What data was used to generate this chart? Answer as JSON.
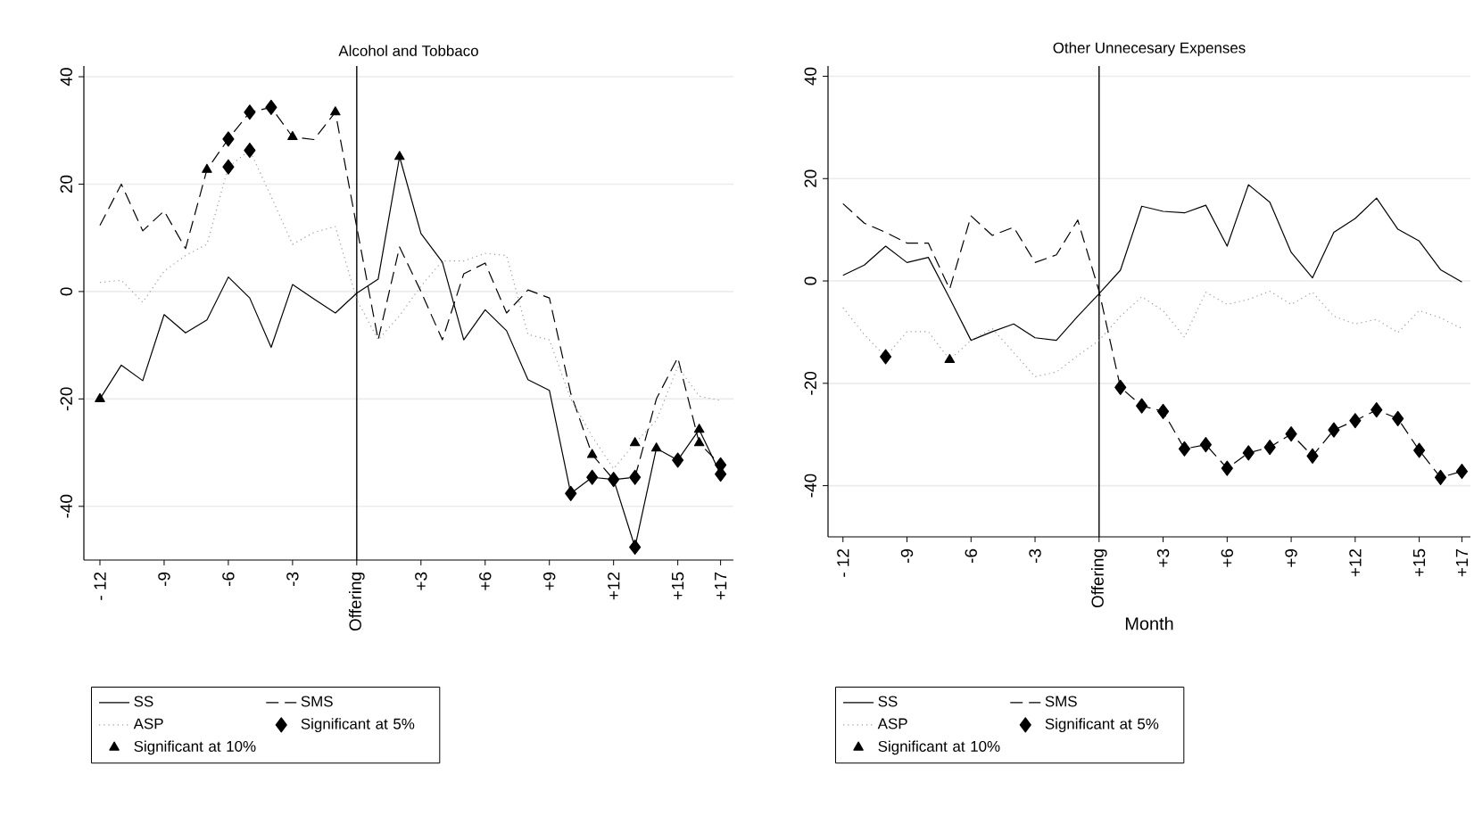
{
  "chart_data": [
    {
      "type": "line",
      "title": "Alcohol and Tobbaco",
      "x": [
        -12,
        -11,
        -10,
        -9,
        -8,
        -7,
        -6,
        -5,
        -4,
        -3,
        -2,
        -1,
        0,
        1,
        2,
        3,
        4,
        5,
        6,
        7,
        8,
        9,
        10,
        11,
        12,
        13,
        14,
        15,
        16,
        17
      ],
      "xlim": [
        -12.75,
        17.6
      ],
      "ylim": [
        -50,
        42
      ],
      "xticks": [
        {
          "value": -12,
          "label": "- 12"
        },
        {
          "value": -9,
          "label": "-9"
        },
        {
          "value": -6,
          "label": "-6"
        },
        {
          "value": -3,
          "label": "-3"
        },
        {
          "value": 0,
          "label": "Offering"
        },
        {
          "value": 3,
          "label": "+3"
        },
        {
          "value": 6,
          "label": "+6"
        },
        {
          "value": 9,
          "label": "+9"
        },
        {
          "value": 12,
          "label": "+12"
        },
        {
          "value": 15,
          "label": "+15"
        },
        {
          "value": 17,
          "label": "+17"
        }
      ],
      "yticks": [
        -40,
        -20,
        0,
        20,
        40
      ],
      "grid": "y",
      "legend": "bottom",
      "ref_lines": [
        {
          "axis": "x",
          "value": 0,
          "color": "#000000"
        }
      ],
      "series": [
        {
          "name": "SS",
          "color": "#000000",
          "line_style": "solid",
          "marker": "none",
          "values": [
            -20,
            -13.7,
            -16.6,
            -4.3,
            -7.7,
            -5.3,
            2.7,
            -1.2,
            -10.4,
            1.3,
            -1.4,
            -4,
            -0.3,
            2.3,
            25.1,
            10.8,
            5.5,
            -9,
            -3.4,
            -7.3,
            -16.4,
            -18.4,
            -37.6,
            -34.6,
            -35,
            -47.6,
            -29.2,
            -31.4,
            -25.7,
            -34
          ]
        },
        {
          "name": "SMS",
          "color": "#000000",
          "line_style": "dashed",
          "marker": "none",
          "values": [
            12.3,
            20,
            11.3,
            15,
            8,
            22.7,
            28.4,
            33.4,
            34.3,
            28.8,
            28.3,
            33.4,
            12,
            -9,
            8.3,
            0,
            -9,
            3.3,
            5.3,
            -4,
            0.3,
            -1.2,
            -19,
            -30.4,
            -35,
            -34.6,
            -20,
            -12.3,
            -28.2,
            -32.3
          ]
        },
        {
          "name": "ASP",
          "color": "#9a9a9a",
          "line_style": "dotted",
          "marker": "none",
          "values": [
            1.7,
            2.1,
            -2,
            3.8,
            6.7,
            8.8,
            23.2,
            26.3,
            17.7,
            8.8,
            11,
            12.1,
            -1.5,
            -9,
            -4.5,
            1,
            5.7,
            5.7,
            7.1,
            6.7,
            -8,
            -9,
            -20,
            -27,
            -33,
            -28.2,
            -24,
            -14,
            -19.5,
            -20.3
          ]
        },
        {
          "name": "Significant at 5%",
          "type": "scatter",
          "color": "#000000",
          "marker": "diamond",
          "x": [
            -6,
            -5,
            -4,
            -6,
            -5,
            10,
            11,
            12,
            13,
            13,
            15,
            17,
            17
          ],
          "values": [
            28.4,
            33.4,
            34.3,
            23.2,
            26.3,
            -37.6,
            -34.6,
            -35,
            -34.6,
            -47.6,
            -31.4,
            -32.3,
            -34
          ]
        },
        {
          "name": "Significant at 10%",
          "type": "scatter",
          "color": "#000000",
          "marker": "triangle",
          "x": [
            -12,
            -7,
            -3,
            -1,
            2,
            11,
            13,
            14,
            16,
            16
          ],
          "values": [
            -20,
            22.7,
            28.8,
            33.4,
            25.1,
            -30.4,
            -28.2,
            -29.2,
            -25.7,
            -28.2
          ]
        }
      ]
    },
    {
      "type": "line",
      "title": "Other Unnecesary Expenses",
      "xlabel": "Month",
      "x": [
        -12,
        -11,
        -10,
        -9,
        -8,
        -7,
        -6,
        -5,
        -4,
        -3,
        -2,
        -1,
        0,
        1,
        2,
        3,
        4,
        5,
        6,
        7,
        8,
        9,
        10,
        11,
        12,
        13,
        14,
        15,
        16,
        17
      ],
      "xlim": [
        -12.7,
        17.4
      ],
      "ylim": [
        -50,
        42
      ],
      "xticks": [
        {
          "value": -12,
          "label": "- 12"
        },
        {
          "value": -9,
          "label": "-9"
        },
        {
          "value": -6,
          "label": "-6"
        },
        {
          "value": -3,
          "label": "-3"
        },
        {
          "value": 0,
          "label": "Offering"
        },
        {
          "value": 3,
          "label": "+3"
        },
        {
          "value": 6,
          "label": "+6"
        },
        {
          "value": 9,
          "label": "+9"
        },
        {
          "value": 12,
          "label": "+12"
        },
        {
          "value": 15,
          "label": "+15"
        },
        {
          "value": 17,
          "label": "+17"
        }
      ],
      "yticks": [
        -40,
        -20,
        0,
        20,
        40
      ],
      "grid": "y",
      "legend": "bottom",
      "ref_lines": [
        {
          "axis": "x",
          "value": 0,
          "color": "#000000"
        }
      ],
      "series": [
        {
          "name": "SS",
          "color": "#000000",
          "line_style": "solid",
          "marker": "none",
          "values": [
            1.1,
            3.1,
            6.8,
            3.6,
            4.6,
            -3.4,
            -11.6,
            -9.9,
            -8.4,
            -11.1,
            -11.6,
            -6.9,
            -2.5,
            2.1,
            14.6,
            13.6,
            13.3,
            14.8,
            6.8,
            18.8,
            15.4,
            5.6,
            0.6,
            9.5,
            12.2,
            16.2,
            10.1,
            7.8,
            2.2,
            -0.2
          ]
        },
        {
          "name": "SMS",
          "color": "#000000",
          "line_style": "dashed",
          "marker": "none",
          "values": [
            15.1,
            11.3,
            9.5,
            7.4,
            7.4,
            -1.6,
            12.7,
            8.9,
            10.5,
            3.6,
            5.1,
            11.9,
            -2,
            -20.8,
            -24.4,
            -25.5,
            -32.8,
            -32,
            -36.6,
            -33.6,
            -32.5,
            -29.9,
            -34.2,
            -29.1,
            -27.3,
            -25.2,
            -26.9,
            -33.1,
            -38.4,
            -37.2
          ]
        },
        {
          "name": "ASP",
          "color": "#9a9a9a",
          "line_style": "dotted",
          "marker": "none",
          "values": [
            -5.2,
            -10.5,
            -14.8,
            -9.9,
            -9.9,
            -15.4,
            -11.6,
            -9.3,
            -14,
            -18.7,
            -17.8,
            -14.6,
            -11.6,
            -6.9,
            -3.1,
            -5.8,
            -11,
            -2.2,
            -4.6,
            -3.6,
            -2,
            -4.6,
            -2.2,
            -6.9,
            -8.4,
            -7.5,
            -10.1,
            -5.8,
            -7.2,
            -9.3
          ]
        },
        {
          "name": "Significant at 5%",
          "type": "scatter",
          "color": "#000000",
          "marker": "diamond",
          "x": [
            -10,
            1,
            2,
            3,
            4,
            5,
            6,
            7,
            8,
            9,
            10,
            11,
            12,
            13,
            14,
            15,
            16,
            17
          ],
          "values": [
            -14.8,
            -20.8,
            -24.4,
            -25.5,
            -32.8,
            -32,
            -36.6,
            -33.6,
            -32.5,
            -29.9,
            -34.2,
            -29.1,
            -27.3,
            -25.2,
            -26.9,
            -33.1,
            -38.4,
            -37.2
          ]
        },
        {
          "name": "Significant at 10%",
          "type": "scatter",
          "color": "#000000",
          "marker": "triangle",
          "x": [
            -7
          ],
          "values": [
            -15.4
          ]
        }
      ]
    }
  ]
}
